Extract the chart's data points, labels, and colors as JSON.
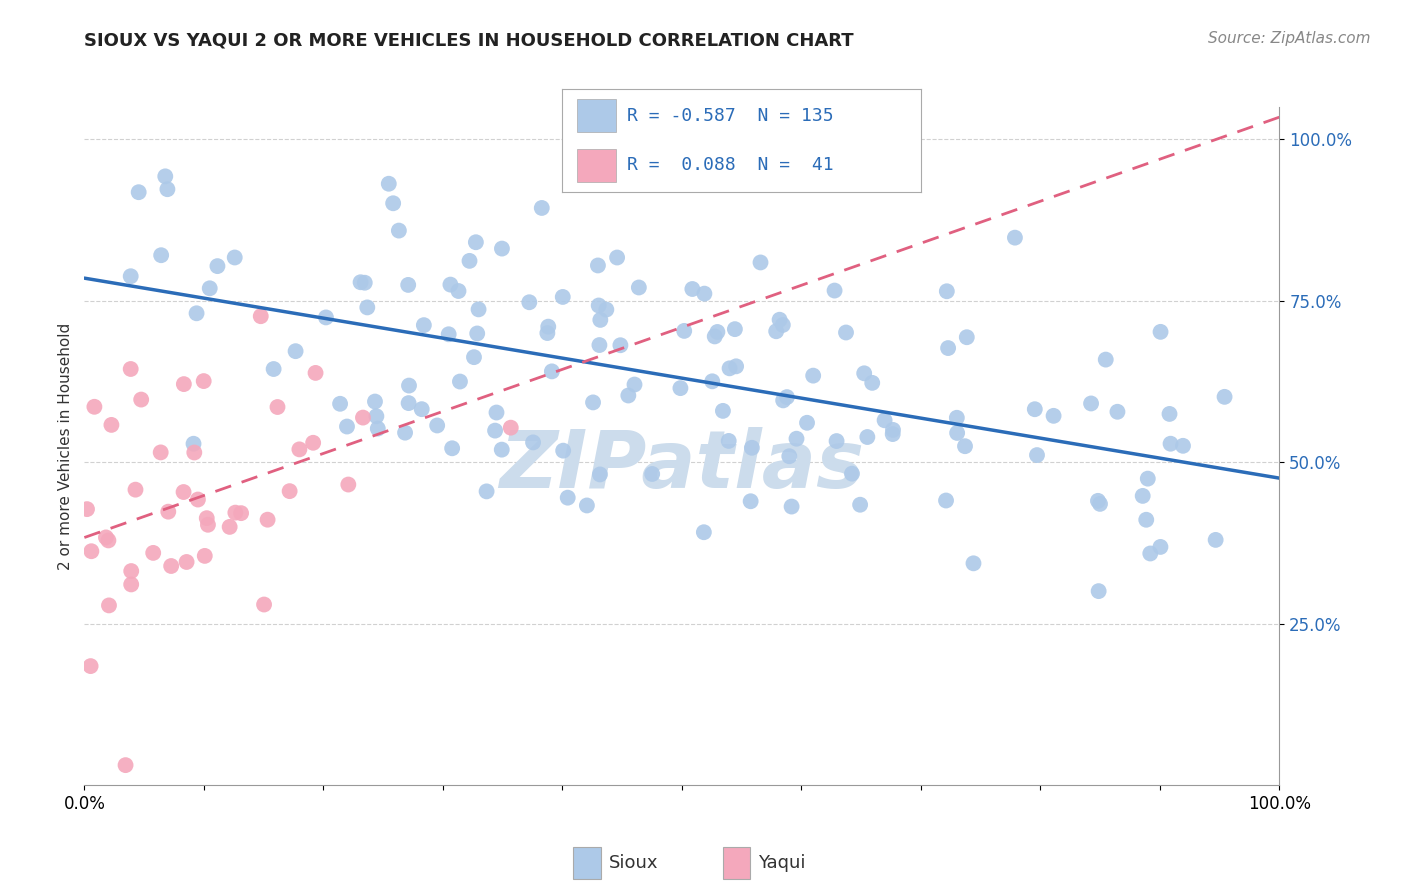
{
  "title": "SIOUX VS YAQUI 2 OR MORE VEHICLES IN HOUSEHOLD CORRELATION CHART",
  "source": "Source: ZipAtlas.com",
  "ylabel": "2 or more Vehicles in Household",
  "sioux_R": -0.587,
  "sioux_N": 135,
  "yaqui_R": 0.088,
  "yaqui_N": 41,
  "sioux_color": "#adc9e8",
  "yaqui_color": "#f4a8bc",
  "sioux_line_color": "#2b6cb8",
  "yaqui_line_color": "#e06080",
  "background_color": "#ffffff",
  "grid_color": "#cccccc",
  "watermark": "ZIPatlas",
  "watermark_color": "#ccdcec",
  "legend_color": "#2b6cb8",
  "xmin": 0.0,
  "xmax": 1.0,
  "ymin": 0.0,
  "ymax": 1.05,
  "title_fontsize": 13,
  "source_fontsize": 11,
  "tick_fontsize": 12,
  "legend_fontsize": 13
}
